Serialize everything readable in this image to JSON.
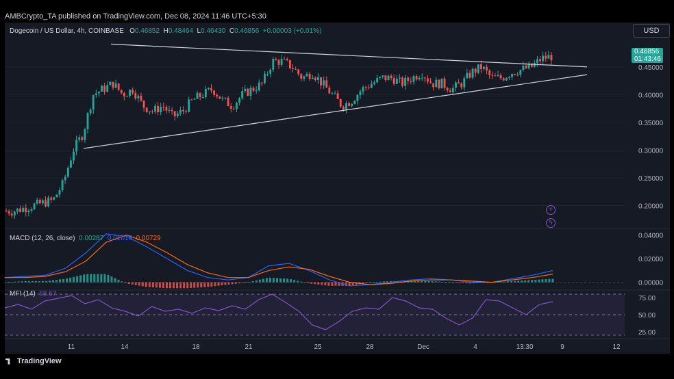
{
  "header": {
    "publisher_line": "AMBCrypto_TA published on TradingView.com, Dec 08, 2024 11:46 UTC+5:30"
  },
  "symbol": {
    "title": "Dogecoin / US Dollar, 4h, COINBASE",
    "o_label": "O",
    "o": "0.46852",
    "h_label": "H",
    "h": "0.48464",
    "l_label": "L",
    "l": "0.46430",
    "c_label": "C",
    "c": "0.46856",
    "change": "+0.00003 (+0.01%)"
  },
  "currency_button": "USD",
  "price_badge": {
    "price": "0.46856",
    "countdown": "01:43:46"
  },
  "macd": {
    "label": "MACD (12, 26, close)",
    "hist": "0.00287",
    "macd": "0.01016",
    "signal": "0.00729"
  },
  "mfi": {
    "label": "MFI (14)",
    "value": "68.67"
  },
  "footer": {
    "brand": "TradingView"
  },
  "colors": {
    "up": "#26a69a",
    "down": "#ef5350",
    "trendline": "#d1d4dc",
    "macd": "#2962ff",
    "signal": "#ff6d00",
    "mfi": "#7e57c2"
  },
  "icons": [
    "plus-circle-icon",
    "lightning-circle-icon",
    "tradingview-logo-icon"
  ],
  "chart_data": [
    {
      "type": "candlestick",
      "title": "Dogecoin / US Dollar, 4h, COINBASE",
      "x_ticks": [
        "11",
        "14",
        "18",
        "21",
        "25",
        "28",
        "Dec",
        "4",
        "13:30",
        "9",
        "12"
      ],
      "y_ticks": [
        "0.20000",
        "0.25000",
        "0.30000",
        "0.35000",
        "0.40000",
        "0.45000"
      ],
      "ylim": [
        0.16,
        0.52
      ],
      "close_path": [
        0.19,
        0.19,
        0.195,
        0.2,
        0.205,
        0.21,
        0.24,
        0.3,
        0.33,
        0.4,
        0.41,
        0.42,
        0.4,
        0.41,
        0.38,
        0.37,
        0.38,
        0.36,
        0.37,
        0.39,
        0.4,
        0.41,
        0.39,
        0.38,
        0.4,
        0.41,
        0.42,
        0.46,
        0.46,
        0.45,
        0.43,
        0.44,
        0.42,
        0.4,
        0.38,
        0.39,
        0.41,
        0.42,
        0.43,
        0.43,
        0.42,
        0.43,
        0.44,
        0.42,
        0.42,
        0.41,
        0.42,
        0.44,
        0.45,
        0.43,
        0.43,
        0.44,
        0.445,
        0.45,
        0.465,
        0.469
      ],
      "trendlines": [
        {
          "name": "upper",
          "points": [
            [
              0,
              0.491
            ],
            [
              1,
              0.45
            ]
          ]
        },
        {
          "name": "lower",
          "points": [
            [
              0,
              0.303
            ],
            [
              1,
              0.436
            ]
          ]
        }
      ]
    },
    {
      "type": "line",
      "title": "MACD (12, 26, close)",
      "y_ticks": [
        "0.00000",
        "0.02000",
        "0.04000"
      ],
      "ylim": [
        -0.006,
        0.045
      ],
      "series": [
        {
          "name": "MACD",
          "values": [
            0.004,
            0.005,
            0.006,
            0.012,
            0.025,
            0.041,
            0.039,
            0.03,
            0.02,
            0.01,
            0.004,
            0.002,
            0.004,
            0.014,
            0.016,
            0.01,
            0.002,
            -0.003,
            -0.002,
            0.0,
            0.002,
            0.003,
            0.002,
            0.0,
            0.0,
            0.003,
            0.006,
            0.01
          ]
        },
        {
          "name": "Signal",
          "values": [
            0.004,
            0.004,
            0.005,
            0.009,
            0.018,
            0.034,
            0.04,
            0.034,
            0.025,
            0.015,
            0.008,
            0.004,
            0.004,
            0.01,
            0.013,
            0.011,
            0.005,
            0.0,
            -0.002,
            -0.001,
            0.001,
            0.002,
            0.002,
            0.001,
            0.0,
            0.002,
            0.004,
            0.007
          ]
        }
      ]
    },
    {
      "type": "line",
      "title": "MFI (14)",
      "y_ticks": [
        "25.00",
        "50.00",
        "75.00"
      ],
      "ylim": [
        15,
        85
      ],
      "series": [
        {
          "name": "MFI",
          "values": [
            60,
            65,
            58,
            70,
            74,
            78,
            66,
            72,
            60,
            55,
            48,
            62,
            55,
            58,
            52,
            60,
            56,
            63,
            58,
            72,
            80,
            68,
            55,
            35,
            28,
            40,
            55,
            60,
            58,
            75,
            70,
            60,
            58,
            45,
            35,
            45,
            72,
            70,
            60,
            50,
            65,
            69
          ]
        }
      ]
    }
  ]
}
